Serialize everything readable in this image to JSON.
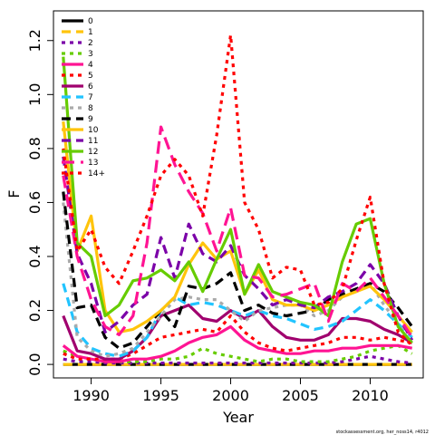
{
  "chart_data": {
    "type": "line",
    "xlabel": "Year",
    "ylabel": "F",
    "xlim": [
      1987.3,
      2013.8
    ],
    "ylim": [
      -0.05,
      1.31
    ],
    "xticks": [
      1990,
      1995,
      2000,
      2005,
      2010
    ],
    "yticks": [
      0.0,
      0.2,
      0.4,
      0.6,
      0.8,
      1.0,
      1.2
    ],
    "ytick_labels": [
      "0.0",
      "0.2",
      "0.4",
      "0.6",
      "0.8",
      "1.0",
      "1.2"
    ],
    "grid": false,
    "legend_position": "top-left",
    "credit": "stockassessment.org, her_noss14, r4012",
    "x": [
      1988,
      1989,
      1990,
      1991,
      1992,
      1993,
      1994,
      1995,
      1996,
      1997,
      1998,
      1999,
      2000,
      2001,
      2002,
      2003,
      2004,
      2005,
      2006,
      2007,
      2008,
      2009,
      2010,
      2011,
      2012,
      2013
    ],
    "series": [
      {
        "name": "0",
        "color": "#000000",
        "dash": "",
        "values": [
          0,
          0,
          0,
          0,
          0,
          0,
          0,
          0,
          0,
          0,
          0,
          0,
          0,
          0,
          0,
          0,
          0,
          0,
          0,
          0,
          0,
          0,
          0,
          0,
          0,
          0
        ]
      },
      {
        "name": "1",
        "color": "#ffc40c",
        "dash": "10,6",
        "values": [
          0,
          0,
          0,
          0,
          0,
          0,
          0,
          0,
          0,
          0,
          0,
          0,
          0,
          0,
          0,
          0,
          0,
          0,
          0,
          0,
          0,
          0,
          0,
          0,
          0,
          0
        ]
      },
      {
        "name": "2",
        "color": "#7b00a8",
        "dash": "4,5",
        "values": [
          0.02,
          0.01,
          0.01,
          0.005,
          0.005,
          0.005,
          0.005,
          0.005,
          0.005,
          0.005,
          0.005,
          0.005,
          0.005,
          0.005,
          0.005,
          0.005,
          0.005,
          0.005,
          0.005,
          0.005,
          0.01,
          0.02,
          0.03,
          0.02,
          0.01,
          0.005
        ]
      },
      {
        "name": "3",
        "color": "#66cc00",
        "dash": "4,5",
        "values": [
          0.05,
          0.03,
          0.02,
          0.01,
          0.01,
          0.01,
          0.01,
          0.02,
          0.02,
          0.03,
          0.06,
          0.04,
          0.03,
          0.02,
          0.01,
          0.02,
          0.02,
          0.01,
          0.01,
          0.01,
          0.02,
          0.03,
          0.05,
          0.06,
          0.07,
          0.04
        ]
      },
      {
        "name": "4",
        "color": "#ff1493",
        "dash": "",
        "values": [
          0.07,
          0.03,
          0.02,
          0.01,
          0.01,
          0.02,
          0.02,
          0.03,
          0.05,
          0.08,
          0.1,
          0.11,
          0.14,
          0.09,
          0.06,
          0.05,
          0.04,
          0.04,
          0.05,
          0.05,
          0.06,
          0.06,
          0.07,
          0.07,
          0.07,
          0.06
        ]
      },
      {
        "name": "5",
        "color": "#ff0000",
        "dash": "4,5",
        "values": [
          0.04,
          0.02,
          0.02,
          0.02,
          0.02,
          0.04,
          0.07,
          0.1,
          0.11,
          0.12,
          0.13,
          0.12,
          0.18,
          0.12,
          0.08,
          0.06,
          0.05,
          0.06,
          0.07,
          0.08,
          0.1,
          0.1,
          0.09,
          0.1,
          0.09,
          0.08
        ]
      },
      {
        "name": "6",
        "color": "#a0006e",
        "dash": "",
        "values": [
          0.18,
          0.05,
          0.04,
          0.02,
          0.02,
          0.05,
          0.1,
          0.18,
          0.2,
          0.22,
          0.17,
          0.16,
          0.2,
          0.17,
          0.2,
          0.14,
          0.1,
          0.09,
          0.09,
          0.11,
          0.17,
          0.17,
          0.16,
          0.13,
          0.11,
          0.08
        ]
      },
      {
        "name": "7",
        "color": "#22c4ff",
        "dash": "10,6",
        "values": [
          0.3,
          0.12,
          0.06,
          0.04,
          0.03,
          0.05,
          0.1,
          0.2,
          0.25,
          0.22,
          0.23,
          0.22,
          0.2,
          0.18,
          0.2,
          0.18,
          0.17,
          0.15,
          0.13,
          0.14,
          0.16,
          0.2,
          0.24,
          0.2,
          0.15,
          0.1
        ]
      },
      {
        "name": "8",
        "color": "#aaaaaa",
        "dash": "4,5",
        "values": [
          0.6,
          0.1,
          0.05,
          0.03,
          0.04,
          0.06,
          0.12,
          0.18,
          0.24,
          0.25,
          0.24,
          0.24,
          0.2,
          0.16,
          0.2,
          0.21,
          0.22,
          0.22,
          0.18,
          0.2,
          0.25,
          0.27,
          0.3,
          0.22,
          0.15,
          0.11
        ]
      },
      {
        "name": "9",
        "color": "#000000",
        "dash": "10,6",
        "values": [
          0.64,
          0.21,
          0.22,
          0.1,
          0.06,
          0.08,
          0.14,
          0.2,
          0.14,
          0.29,
          0.28,
          0.3,
          0.34,
          0.2,
          0.22,
          0.19,
          0.18,
          0.19,
          0.2,
          0.24,
          0.26,
          0.28,
          0.3,
          0.27,
          0.21,
          0.14
        ]
      },
      {
        "name": "10",
        "color": "#ffc40c",
        "dash": "",
        "values": [
          0.9,
          0.42,
          0.55,
          0.2,
          0.12,
          0.13,
          0.16,
          0.2,
          0.25,
          0.37,
          0.45,
          0.39,
          0.42,
          0.26,
          0.35,
          0.24,
          0.22,
          0.22,
          0.2,
          0.22,
          0.25,
          0.27,
          0.29,
          0.24,
          0.18,
          0.12
        ]
      },
      {
        "name": "11",
        "color": "#7b00a8",
        "dash": "10,6",
        "values": [
          0.77,
          0.41,
          0.3,
          0.12,
          0.16,
          0.22,
          0.26,
          0.47,
          0.32,
          0.52,
          0.41,
          0.38,
          0.44,
          0.33,
          0.28,
          0.22,
          0.24,
          0.22,
          0.21,
          0.25,
          0.27,
          0.3,
          0.37,
          0.3,
          0.18,
          0.09
        ]
      },
      {
        "name": "12",
        "color": "#66cc00",
        "dash": "",
        "values": [
          1.14,
          0.45,
          0.4,
          0.18,
          0.22,
          0.31,
          0.32,
          0.35,
          0.31,
          0.38,
          0.27,
          0.39,
          0.5,
          0.26,
          0.37,
          0.27,
          0.25,
          0.23,
          0.22,
          0.18,
          0.38,
          0.52,
          0.54,
          0.3,
          0.14,
          0.08
        ]
      },
      {
        "name": "13",
        "color": "#ff1493",
        "dash": "14,7",
        "values": [
          0.7,
          0.4,
          0.24,
          0.14,
          0.11,
          0.18,
          0.45,
          0.88,
          0.74,
          0.64,
          0.56,
          0.42,
          0.58,
          0.33,
          0.32,
          0.25,
          0.26,
          0.28,
          0.3,
          0.16,
          0.3,
          0.27,
          0.32,
          0.25,
          0.18,
          0.1
        ]
      },
      {
        "name": "14+",
        "color": "#ff0000",
        "dash": "4,5",
        "values": [
          0.8,
          0.42,
          0.5,
          0.36,
          0.3,
          0.42,
          0.55,
          0.7,
          0.76,
          0.7,
          0.55,
          0.85,
          1.22,
          0.6,
          0.5,
          0.32,
          0.36,
          0.35,
          0.22,
          0.23,
          0.28,
          0.46,
          0.62,
          0.3,
          0.12,
          0.07
        ]
      }
    ]
  }
}
